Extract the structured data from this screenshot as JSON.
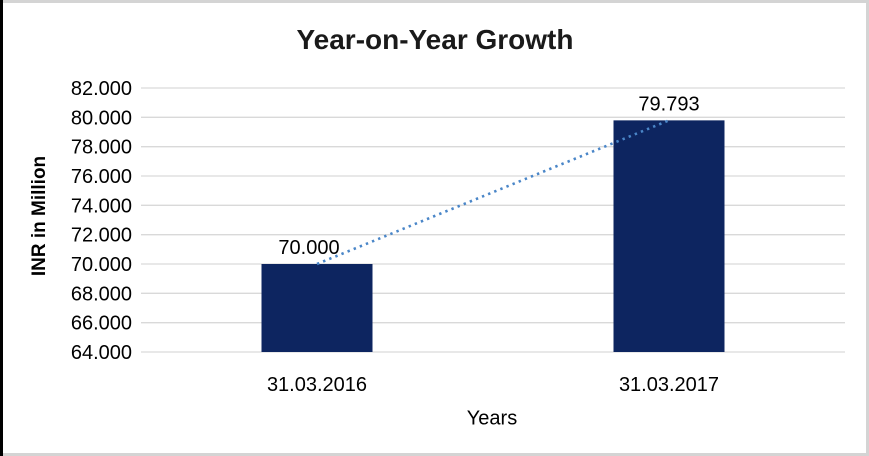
{
  "chart_data": {
    "type": "bar",
    "title": "Year-on-Year Growth",
    "xlabel": "Years",
    "ylabel": "INR in Million",
    "categories": [
      "31.03.2016",
      "31.03.2017"
    ],
    "values": [
      70.0,
      79.793
    ],
    "value_labels": [
      "70.000",
      "79.793"
    ],
    "ylim": [
      64,
      82
    ],
    "y_ticks": [
      64,
      66,
      68,
      70,
      72,
      74,
      76,
      78,
      80,
      82
    ],
    "y_tick_labels": [
      "64.000",
      "66.000",
      "68.000",
      "70.000",
      "72.000",
      "74.000",
      "76.000",
      "78.000",
      "80.000",
      "82.000"
    ],
    "grid": true,
    "legend": "none",
    "trendline_style": "dotted",
    "colors": {
      "bar": "#0d2560",
      "trendline": "#4a86c8",
      "gridline": "#d9d9d9",
      "text": "#000000",
      "title_text": "#1a1a1a",
      "background": "#ffffff",
      "frame_border": "#d4d4d4",
      "frame_border_left": "#000000"
    }
  }
}
